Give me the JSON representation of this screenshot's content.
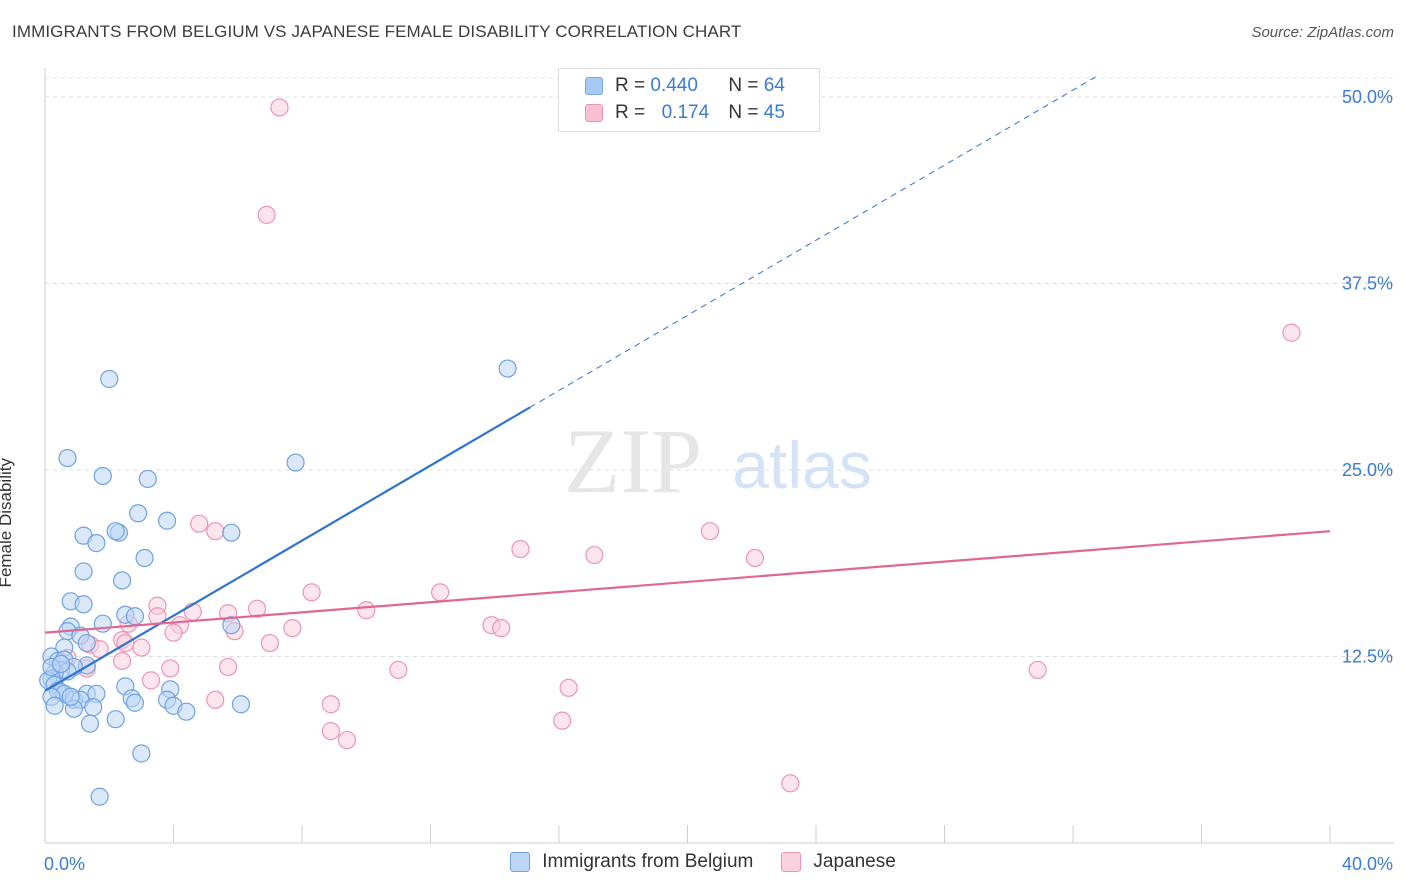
{
  "header": {
    "title": "IMMIGRANTS FROM BELGIUM VS JAPANESE FEMALE DISABILITY CORRELATION CHART",
    "source": "Source: ZipAtlas.com"
  },
  "legend": {
    "rows": [
      {
        "r_label": "R =",
        "r_value": "0.440",
        "n_label": "N =",
        "n_value": "64",
        "color": "#a9c8f0",
        "border": "#7aaae6"
      },
      {
        "r_label": "R =",
        "r_value": "0.174",
        "n_label": "N =",
        "n_value": "45",
        "color": "#f8c0d2",
        "border": "#ee94b2"
      }
    ]
  },
  "bottom_legend": [
    {
      "label": "Immigrants from Belgium",
      "color": "#bcd6f5",
      "border": "#6fa2e2"
    },
    {
      "label": "Japanese",
      "color": "#fbd0de",
      "border": "#ee94b2"
    }
  ],
  "watermark": {
    "part1": "ZIP",
    "part2": "atlas"
  },
  "chart_data": {
    "type": "scatter",
    "title": "IMMIGRANTS FROM BELGIUM VS JAPANESE FEMALE DISABILITY CORRELATION CHART",
    "xlabel": "",
    "ylabel": "Female Disability",
    "xlim": [
      0,
      40
    ],
    "ylim": [
      0,
      52.5
    ],
    "x_tick_labels": [
      "0.0%",
      "40.0%"
    ],
    "y_ticks": [
      12.5,
      25.0,
      37.5,
      50.0
    ],
    "y_tick_labels": [
      "12.5%",
      "25.0%",
      "37.5%",
      "50.0%"
    ],
    "grid": true,
    "legend_position": "top-center",
    "series": [
      {
        "name": "Immigrants from Belgium",
        "color": "#6fa2e2",
        "fill": "#bcd6f5",
        "line_color": "#2f74d0",
        "trend": {
          "x0": 0,
          "y0": 10.2,
          "x1": 15.1,
          "y1": 29.2,
          "dash_to_x": 32.7
        },
        "points": [
          [
            2.0,
            31.1
          ],
          [
            0.7,
            25.8
          ],
          [
            1.8,
            24.6
          ],
          [
            3.2,
            24.4
          ],
          [
            7.8,
            25.5
          ],
          [
            14.4,
            31.8
          ],
          [
            2.9,
            22.1
          ],
          [
            3.8,
            21.6
          ],
          [
            2.3,
            20.8
          ],
          [
            2.2,
            20.9
          ],
          [
            1.2,
            20.6
          ],
          [
            1.6,
            20.1
          ],
          [
            5.8,
            20.8
          ],
          [
            3.1,
            19.1
          ],
          [
            1.2,
            18.2
          ],
          [
            2.4,
            17.6
          ],
          [
            0.8,
            16.2
          ],
          [
            1.2,
            16.0
          ],
          [
            2.5,
            15.3
          ],
          [
            1.8,
            14.7
          ],
          [
            0.8,
            14.5
          ],
          [
            0.7,
            14.2
          ],
          [
            1.1,
            13.9
          ],
          [
            1.3,
            13.4
          ],
          [
            0.6,
            13.1
          ],
          [
            0.2,
            12.5
          ],
          [
            0.4,
            12.2
          ],
          [
            0.6,
            12.3
          ],
          [
            1.3,
            11.9
          ],
          [
            0.9,
            11.8
          ],
          [
            0.5,
            11.6
          ],
          [
            0.7,
            11.5
          ],
          [
            0.3,
            11.4
          ],
          [
            0.2,
            11.0
          ],
          [
            0.1,
            10.9
          ],
          [
            0.3,
            10.6
          ],
          [
            2.5,
            10.5
          ],
          [
            3.9,
            10.3
          ],
          [
            0.5,
            10.1
          ],
          [
            0.4,
            10.2
          ],
          [
            0.6,
            10.0
          ],
          [
            1.3,
            10.0
          ],
          [
            0.2,
            9.8
          ],
          [
            1.6,
            10.0
          ],
          [
            0.9,
            9.6
          ],
          [
            1.1,
            9.6
          ],
          [
            2.7,
            9.7
          ],
          [
            2.8,
            9.4
          ],
          [
            3.8,
            9.6
          ],
          [
            4.0,
            9.2
          ],
          [
            4.4,
            8.8
          ],
          [
            6.1,
            9.3
          ],
          [
            5.8,
            14.6
          ],
          [
            0.9,
            9.0
          ],
          [
            0.3,
            9.2
          ],
          [
            1.5,
            9.1
          ],
          [
            1.4,
            8.0
          ],
          [
            2.2,
            8.3
          ],
          [
            3.0,
            6.0
          ],
          [
            1.7,
            3.1
          ],
          [
            0.8,
            9.8
          ],
          [
            0.2,
            11.8
          ],
          [
            2.8,
            15.2
          ],
          [
            0.5,
            12.0
          ]
        ]
      },
      {
        "name": "Japanese",
        "color": "#ee94b2",
        "fill": "#fbd0de",
        "line_color": "#e06694",
        "trend": {
          "x0": 0,
          "y0": 14.1,
          "x1": 40,
          "y1": 20.9
        },
        "points": [
          [
            7.3,
            49.3
          ],
          [
            6.9,
            42.1
          ],
          [
            38.8,
            34.2
          ],
          [
            4.8,
            21.4
          ],
          [
            5.3,
            20.9
          ],
          [
            20.7,
            20.9
          ],
          [
            14.8,
            19.7
          ],
          [
            17.1,
            19.3
          ],
          [
            22.1,
            19.1
          ],
          [
            8.3,
            16.8
          ],
          [
            12.3,
            16.8
          ],
          [
            3.5,
            15.9
          ],
          [
            6.6,
            15.7
          ],
          [
            4.6,
            15.5
          ],
          [
            10.0,
            15.6
          ],
          [
            3.5,
            15.2
          ],
          [
            5.7,
            15.4
          ],
          [
            2.6,
            14.7
          ],
          [
            4.2,
            14.6
          ],
          [
            7.7,
            14.4
          ],
          [
            13.9,
            14.6
          ],
          [
            14.2,
            14.4
          ],
          [
            4.0,
            14.1
          ],
          [
            5.9,
            14.2
          ],
          [
            2.4,
            13.6
          ],
          [
            2.5,
            13.4
          ],
          [
            7.0,
            13.4
          ],
          [
            1.4,
            13.3
          ],
          [
            1.7,
            13.0
          ],
          [
            3.0,
            13.1
          ],
          [
            2.4,
            12.2
          ],
          [
            0.7,
            12.4
          ],
          [
            1.3,
            11.7
          ],
          [
            3.9,
            11.7
          ],
          [
            5.7,
            11.8
          ],
          [
            11.0,
            11.6
          ],
          [
            30.9,
            11.6
          ],
          [
            3.3,
            10.9
          ],
          [
            16.3,
            10.4
          ],
          [
            5.3,
            9.6
          ],
          [
            8.9,
            9.3
          ],
          [
            16.1,
            8.2
          ],
          [
            8.9,
            7.5
          ],
          [
            9.4,
            6.9
          ],
          [
            23.2,
            4.0
          ]
        ]
      }
    ]
  }
}
